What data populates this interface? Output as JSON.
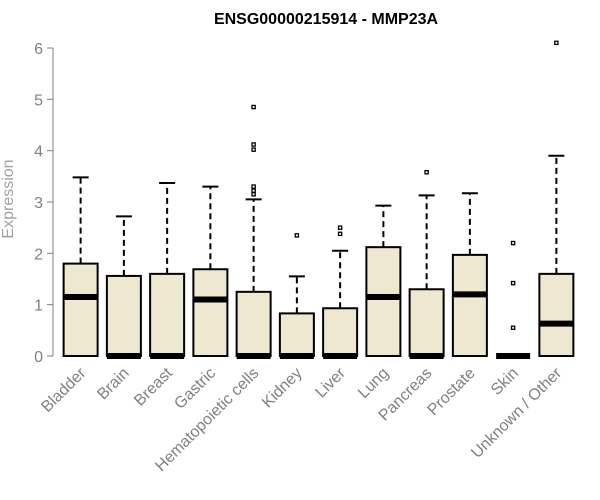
{
  "chart_data": {
    "type": "boxplot",
    "title": "ENSG00000215914 - MMP23A",
    "xlabel": "",
    "ylabel": "Expression",
    "ylim": [
      0,
      6
    ],
    "yticks": [
      0,
      1,
      2,
      3,
      4,
      5,
      6
    ],
    "grid": false,
    "colors": {
      "box_fill": "#efe8d0",
      "box_stroke": "#000000",
      "axis": "#808080",
      "tick_label": "#808080",
      "ylabel": "#a0a0a0"
    },
    "categories": [
      "Bladder",
      "Brain",
      "Breast",
      "Gastric",
      "Hematopoietic cells",
      "Kidney",
      "Liver",
      "Lung",
      "Pancreas",
      "Prostate",
      "Skin",
      "Unknown / Other"
    ],
    "boxes": [
      {
        "category": "Bladder",
        "whisker_low": 0,
        "q1": 0,
        "median": 1.15,
        "q3": 1.8,
        "whisker_high": 3.48,
        "outliers": []
      },
      {
        "category": "Brain",
        "whisker_low": 0,
        "q1": 0,
        "median": 0,
        "q3": 1.56,
        "whisker_high": 2.72,
        "outliers": []
      },
      {
        "category": "Breast",
        "whisker_low": 0,
        "q1": 0,
        "median": 0,
        "q3": 1.6,
        "whisker_high": 3.37,
        "outliers": []
      },
      {
        "category": "Gastric",
        "whisker_low": 0,
        "q1": 0,
        "median": 1.1,
        "q3": 1.69,
        "whisker_high": 3.3,
        "outliers": []
      },
      {
        "category": "Hematopoietic cells",
        "whisker_low": 0,
        "q1": 0,
        "median": 0,
        "q3": 1.25,
        "whisker_high": 3.05,
        "outliers": [
          3.15,
          3.22,
          3.3,
          4.02,
          4.12,
          4.85
        ]
      },
      {
        "category": "Kidney",
        "whisker_low": 0,
        "q1": 0,
        "median": 0,
        "q3": 0.83,
        "whisker_high": 1.55,
        "outliers": [
          2.35
        ]
      },
      {
        "category": "Liver",
        "whisker_low": 0,
        "q1": 0,
        "median": 0,
        "q3": 0.93,
        "whisker_high": 2.05,
        "outliers": [
          2.38,
          2.5
        ]
      },
      {
        "category": "Lung",
        "whisker_low": 0,
        "q1": 0,
        "median": 1.15,
        "q3": 2.12,
        "whisker_high": 2.93,
        "outliers": []
      },
      {
        "category": "Pancreas",
        "whisker_low": 0,
        "q1": 0,
        "median": 0,
        "q3": 1.3,
        "whisker_high": 3.13,
        "outliers": [
          3.58
        ]
      },
      {
        "category": "Prostate",
        "whisker_low": 0,
        "q1": 0,
        "median": 1.2,
        "q3": 1.97,
        "whisker_high": 3.17,
        "outliers": []
      },
      {
        "category": "Skin",
        "whisker_low": 0,
        "q1": 0,
        "median": 0,
        "q3": 0,
        "whisker_high": 0,
        "outliers": [
          0.55,
          1.42,
          2.2
        ]
      },
      {
        "category": "Unknown / Other",
        "whisker_low": 0,
        "q1": 0,
        "median": 0.63,
        "q3": 1.6,
        "whisker_high": 3.9,
        "outliers": [
          6.1
        ]
      }
    ]
  }
}
